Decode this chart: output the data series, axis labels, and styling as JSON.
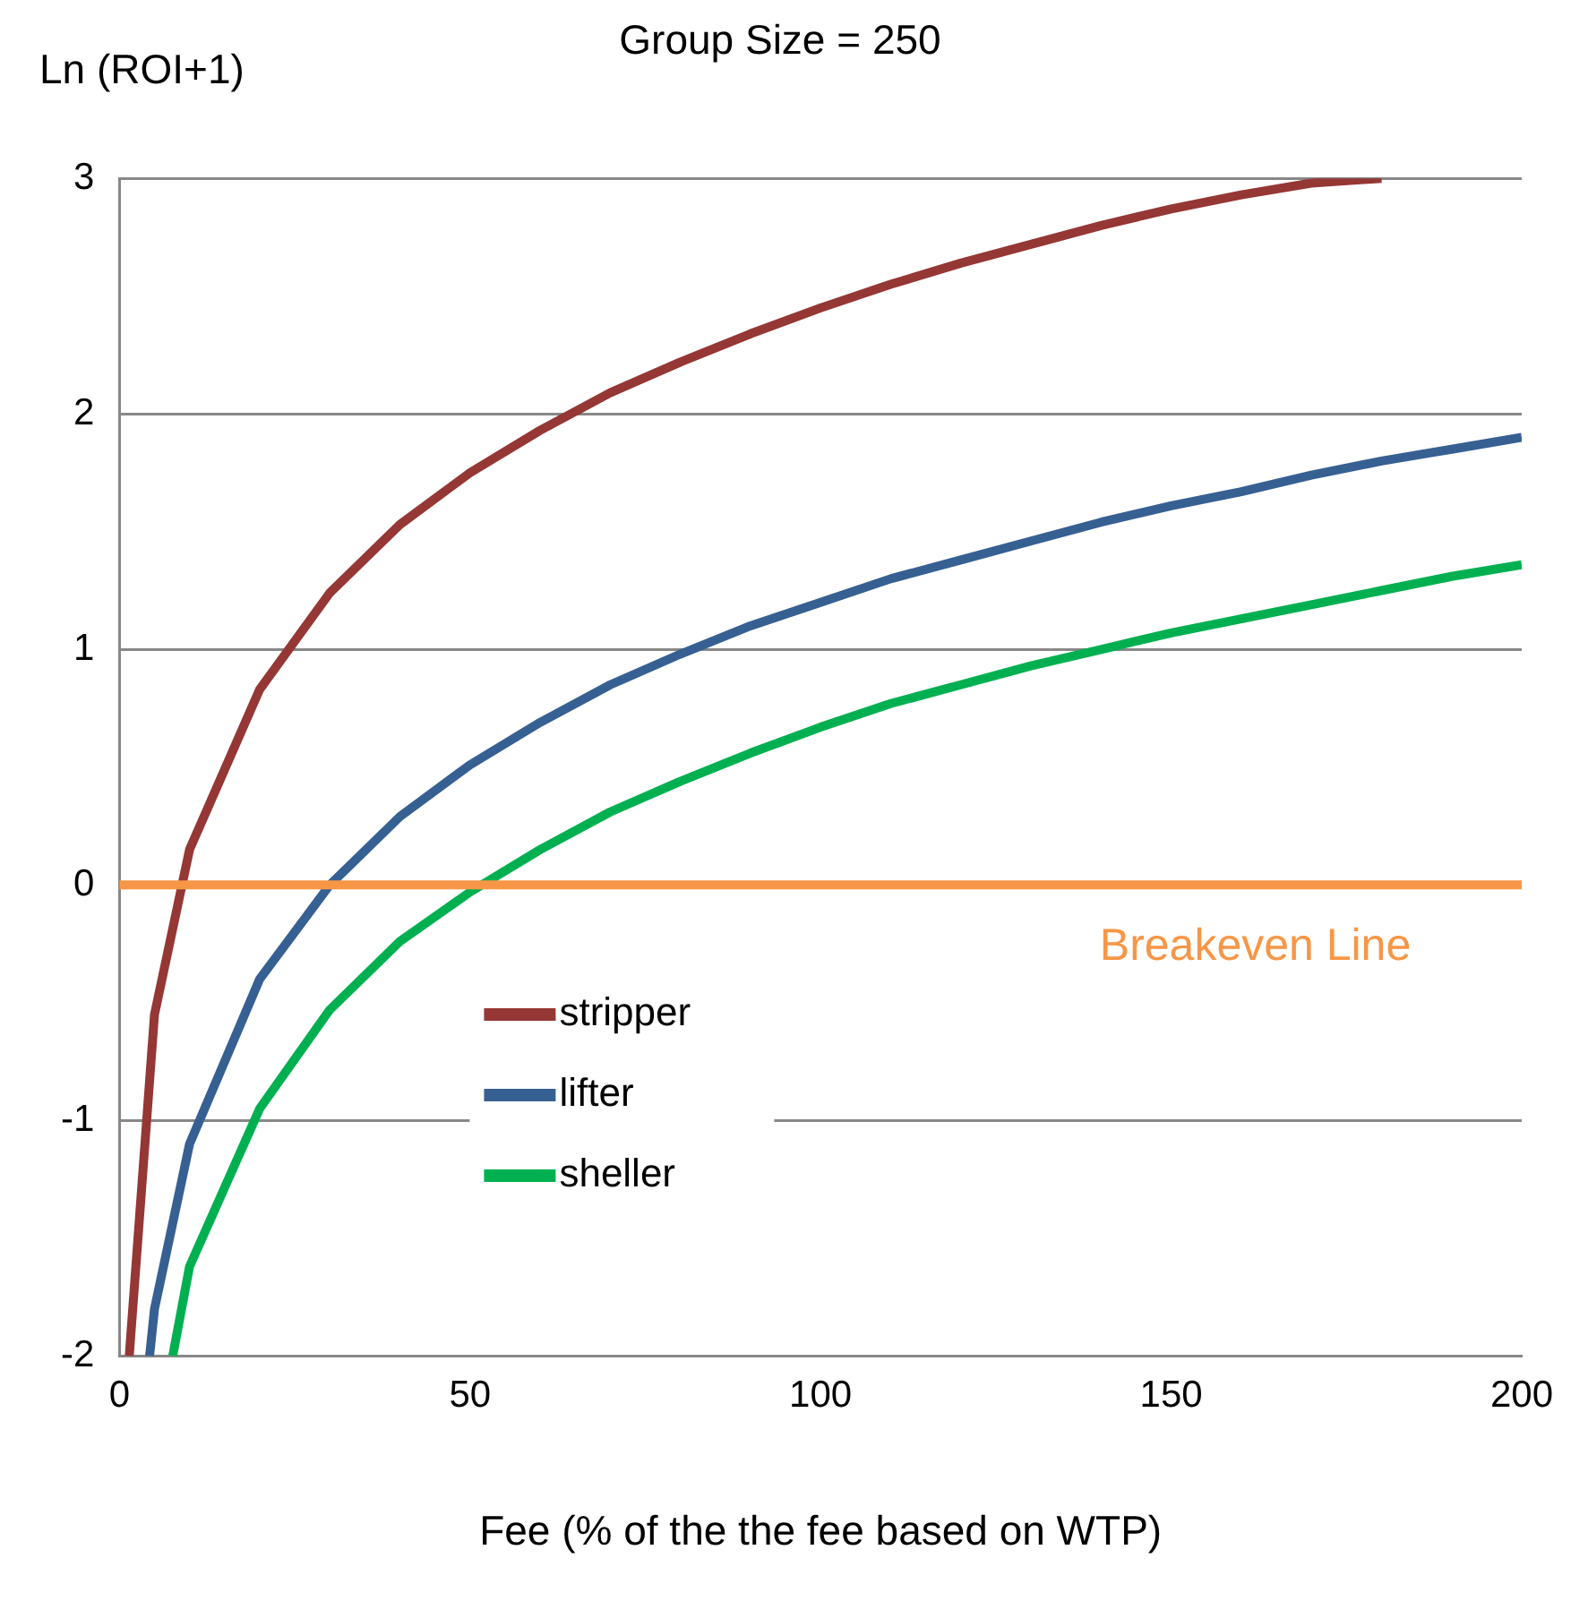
{
  "chart_data": {
    "type": "line",
    "title": "Group Size = 250",
    "xlabel": "Fee (% of the the fee based on WTP)",
    "ylabel": "Ln (ROI+1)",
    "xlim": [
      0,
      200
    ],
    "xticks": [
      0,
      50,
      100,
      150,
      200
    ],
    "ylim": [
      -2,
      3
    ],
    "yticks": [
      -2,
      -1,
      0,
      1,
      2,
      3
    ],
    "grid": "y",
    "legend": "bottom left",
    "marker": "none",
    "line_style": "solid",
    "series": [
      {
        "name": "stripper",
        "color": "#953735",
        "x": [
          1.4,
          5,
          10,
          20,
          30,
          40,
          50,
          60,
          70,
          80,
          90,
          100,
          110,
          120,
          130,
          140,
          150,
          160,
          170,
          180
        ],
        "values": [
          -2,
          -0.55,
          0.15,
          0.83,
          1.24,
          1.53,
          1.75,
          1.93,
          2.09,
          2.22,
          2.34,
          2.45,
          2.55,
          2.64,
          2.72,
          2.8,
          2.87,
          2.93,
          2.98,
          3.0
        ]
      },
      {
        "name": "lifter",
        "color": "#376092",
        "x": [
          4.3,
          5,
          10,
          20,
          30,
          40,
          50,
          60,
          70,
          80,
          90,
          100,
          110,
          120,
          130,
          140,
          150,
          160,
          170,
          180,
          190,
          200
        ],
        "values": [
          -2,
          -1.8,
          -1.1,
          -0.4,
          0.0,
          0.29,
          0.51,
          0.69,
          0.85,
          0.98,
          1.1,
          1.2,
          1.3,
          1.38,
          1.46,
          1.54,
          1.61,
          1.67,
          1.74,
          1.8,
          1.85,
          1.9
        ]
      },
      {
        "name": "sheller",
        "color": "#00b050",
        "x": [
          7.6,
          10,
          20,
          30,
          40,
          50,
          60,
          70,
          80,
          90,
          100,
          110,
          120,
          130,
          140,
          150,
          160,
          170,
          180,
          190,
          200
        ],
        "values": [
          -2,
          -1.62,
          -0.95,
          -0.53,
          -0.24,
          -0.03,
          0.15,
          0.31,
          0.44,
          0.56,
          0.67,
          0.77,
          0.85,
          0.93,
          1.0,
          1.07,
          1.13,
          1.19,
          1.25,
          1.31,
          1.36
        ]
      }
    ],
    "ref_lines": [
      {
        "axis": "y",
        "value": 0,
        "label": "Breakeven Line",
        "color": "#f79646"
      }
    ]
  }
}
